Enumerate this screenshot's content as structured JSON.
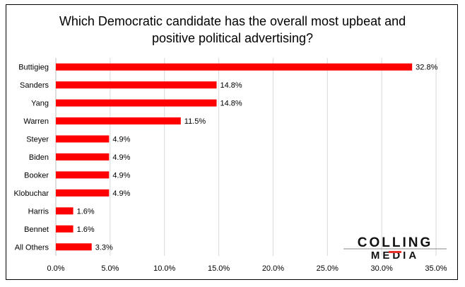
{
  "chart_data": {
    "type": "bar",
    "orientation": "horizontal",
    "title_lines": [
      "Which Democratic candidate has the overall most upbeat and",
      "positive political advertising?"
    ],
    "categories": [
      "Buttigieg",
      "Sanders",
      "Yang",
      "Warren",
      "Steyer",
      "Biden",
      "Booker",
      "Klobuchar",
      "Harris",
      "Bennet",
      "All Others"
    ],
    "values": [
      32.8,
      14.8,
      14.8,
      11.5,
      4.9,
      4.9,
      4.9,
      4.9,
      1.6,
      1.6,
      3.3
    ],
    "data_labels": [
      "32.8%",
      "14.8%",
      "14.8%",
      "11.5%",
      "4.9%",
      "4.9%",
      "4.9%",
      "4.9%",
      "1.6%",
      "1.6%",
      "3.3%"
    ],
    "xticks": [
      0,
      5,
      10,
      15,
      20,
      25,
      30,
      35
    ],
    "xtick_labels": [
      "0.0%",
      "5.0%",
      "10.0%",
      "15.0%",
      "20.0%",
      "25.0%",
      "30.0%",
      "35.0%"
    ],
    "xlim": [
      0,
      35
    ],
    "grid": "vertical",
    "bar_color": "#ff0000",
    "xlabel": "",
    "ylabel": ""
  },
  "logo": {
    "line1": "COLLING",
    "line2": "MEDIA",
    "accent": "#e8302a"
  }
}
